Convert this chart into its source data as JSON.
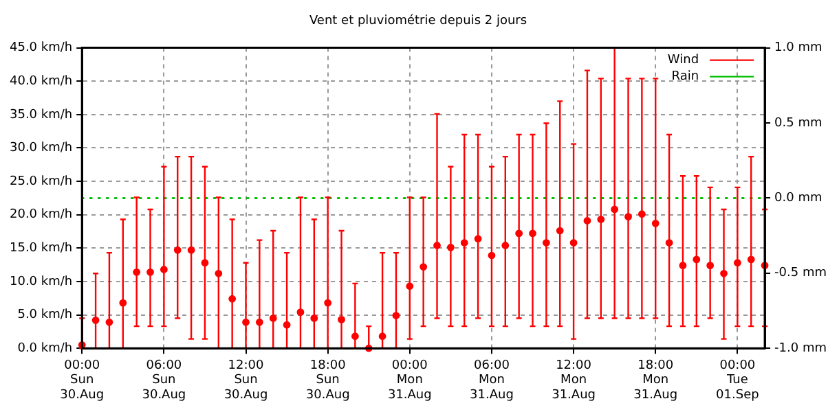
{
  "chart_data": {
    "type": "scatter",
    "title": "Vent et pluviométrie depuis 2 jours",
    "legend": "top right",
    "grid": true,
    "categories": [
      "00:00\nSun\n30.Aug",
      null,
      null,
      null,
      null,
      null,
      "06:00\nSun\n30.Aug",
      null,
      null,
      null,
      null,
      null,
      "12:00\nSun\n30.Aug",
      null,
      null,
      null,
      null,
      null,
      "18:00\nSun\n30.Aug",
      null,
      null,
      null,
      null,
      null,
      "00:00\nMon\n31.Aug",
      null,
      null,
      null,
      null,
      null,
      "06:00\nMon\n31.Aug",
      null,
      null,
      null,
      null,
      null,
      "12:00\nMon\n31.Aug",
      null,
      null,
      null,
      null,
      null,
      "18:00\nMon\n31.Aug",
      null,
      null,
      null,
      null,
      null,
      "00:00\nTue\n01.Sep",
      null,
      null
    ],
    "ylim": [
      0,
      45
    ],
    "yticks": [
      {
        "value": 0,
        "label": "0.0 km/h"
      },
      {
        "value": 5,
        "label": "5.0 km/h"
      },
      {
        "value": 10,
        "label": "10.0 km/h"
      },
      {
        "value": 15,
        "label": "15.0 km/h"
      },
      {
        "value": 20,
        "label": "20.0 km/h"
      },
      {
        "value": 25,
        "label": "25.0 km/h"
      },
      {
        "value": 30,
        "label": "30.0 km/h"
      },
      {
        "value": 35,
        "label": "35.0 km/h"
      },
      {
        "value": 40,
        "label": "40.0 km/h"
      },
      {
        "value": 45,
        "label": "45.0 km/h"
      }
    ],
    "y2lim": [
      -1,
      1
    ],
    "y2ticks": [
      {
        "value": -1,
        "label": "-1.0 mm"
      },
      {
        "value": -0.5,
        "label": "-0.5 mm"
      },
      {
        "value": 0,
        "label": "0.0 mm"
      },
      {
        "value": 0.5,
        "label": "0.5 mm"
      },
      {
        "value": 1,
        "label": "1.0 mm"
      }
    ],
    "series": [
      {
        "name": "Wind",
        "color": "#ff0000",
        "marker": "circle",
        "values": [
          0.5,
          4.2,
          3.9,
          6.8,
          11.4,
          11.4,
          11.8,
          14.7,
          14.7,
          12.8,
          11.2,
          7.4,
          3.9,
          3.9,
          4.5,
          3.5,
          5.4,
          4.5,
          6.8,
          4.3,
          1.8,
          0,
          1.8,
          4.9,
          9.3,
          12.2,
          15.4,
          15.1,
          15.8,
          16.4,
          13.9,
          15.4,
          17.2,
          17.2,
          15.8,
          17.6,
          15.8,
          19.1,
          19.3,
          20.8,
          19.7,
          20.1,
          18.7,
          15.8,
          12.4,
          13.3,
          12.4,
          11.2,
          12.8,
          13.3,
          12.4
        ],
        "errors": [
          [
            0,
            4.5
          ],
          [
            0,
            11.2
          ],
          [
            0,
            14.3
          ],
          [
            0,
            19.3
          ],
          [
            3.3,
            22.6
          ],
          [
            3.3,
            20.8
          ],
          [
            3.3,
            27.2
          ],
          [
            4.5,
            28.7
          ],
          [
            1.4,
            28.7
          ],
          [
            1.4,
            27.2
          ],
          [
            0,
            22.6
          ],
          [
            0,
            19.3
          ],
          [
            0,
            12.8
          ],
          [
            0,
            16.2
          ],
          [
            0,
            17.6
          ],
          [
            0,
            14.3
          ],
          [
            0,
            22.6
          ],
          [
            0,
            19.3
          ],
          [
            0,
            22.6
          ],
          [
            0,
            17.6
          ],
          [
            0,
            9.7
          ],
          [
            0,
            3.3
          ],
          [
            0,
            14.3
          ],
          [
            0,
            14.3
          ],
          [
            1.4,
            22.6
          ],
          [
            3.3,
            22.6
          ],
          [
            4.5,
            35.1
          ],
          [
            3.3,
            27.2
          ],
          [
            3.3,
            32
          ],
          [
            4.5,
            32
          ],
          [
            3.3,
            27.2
          ],
          [
            3.3,
            28.7
          ],
          [
            4.5,
            32
          ],
          [
            3.3,
            32
          ],
          [
            3.3,
            33.7
          ],
          [
            3.3,
            37
          ],
          [
            1.4,
            30.6
          ],
          [
            4.5,
            41.6
          ],
          [
            4.5,
            40.4
          ],
          [
            4.5,
            45
          ],
          [
            4.5,
            40.4
          ],
          [
            4.5,
            40.4
          ],
          [
            4.5,
            40.4
          ],
          [
            3.3,
            32
          ],
          [
            3.3,
            25.8
          ],
          [
            3.3,
            25.8
          ],
          [
            4.5,
            24.1
          ],
          [
            1.4,
            20.8
          ],
          [
            3.3,
            24.1
          ],
          [
            3.3,
            28.7
          ],
          [
            3.3,
            20.8
          ]
        ]
      },
      {
        "name": "Rain",
        "type": "line",
        "axis": "y2",
        "line_style": "dotted",
        "color": "#00c000",
        "values": [
          0,
          0,
          0,
          0,
          0,
          0,
          0,
          0,
          0,
          0,
          0,
          0,
          0,
          0,
          0,
          0,
          0,
          0,
          0,
          0,
          0,
          0,
          0,
          0,
          0,
          0,
          0,
          0,
          0,
          0,
          0,
          0,
          0,
          0,
          0,
          0,
          0,
          0,
          0,
          0,
          0,
          0,
          0,
          0,
          0,
          0,
          0,
          0,
          0,
          0,
          0
        ]
      }
    ]
  }
}
